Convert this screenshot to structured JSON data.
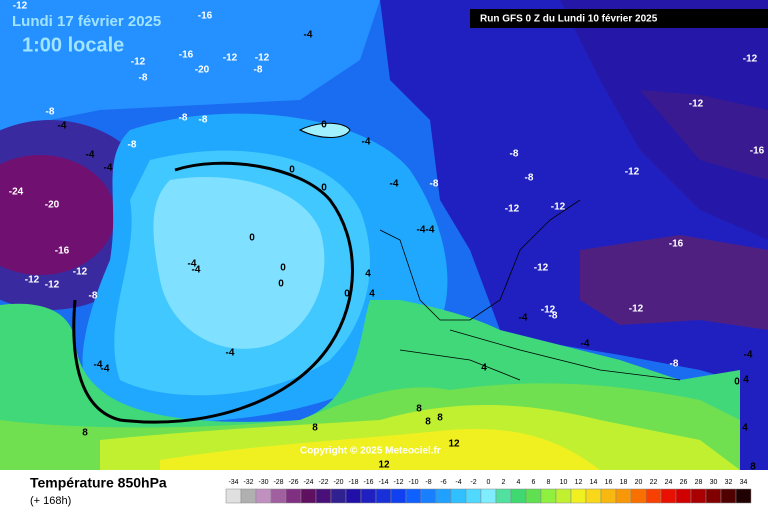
{
  "header": {
    "date": "Lundi 17 février 2025",
    "time": "1:00 locale",
    "run": "Run GFS 0 Z du Lundi 10 février 2025"
  },
  "copyright": "Copyright © 2025 Meteociel.fr",
  "footer": {
    "title": "Température 850hPa",
    "lead": "(+ 168h)"
  },
  "legend": {
    "ticks": [
      -34,
      -32,
      -30,
      -28,
      -26,
      -24,
      -22,
      -20,
      -18,
      -16,
      -14,
      -12,
      -10,
      -8,
      -6,
      -4,
      -2,
      0,
      2,
      4,
      6,
      8,
      10,
      12,
      14,
      16,
      18,
      20,
      22,
      24,
      26,
      28,
      30,
      32,
      34
    ],
    "colors": [
      "#e0e0e0",
      "#b0b0b0",
      "#c090c0",
      "#a060a0",
      "#803080",
      "#601060",
      "#481078",
      "#302090",
      "#2010a8",
      "#2020c0",
      "#1830d8",
      "#1040f0",
      "#1060ff",
      "#1880ff",
      "#20a0ff",
      "#30c0ff",
      "#50d8ff",
      "#80ecff",
      "#50e0a0",
      "#40d870",
      "#60e050",
      "#90f040",
      "#c0f030",
      "#f0f020",
      "#f8d818",
      "#f8b810",
      "#f89808",
      "#f87000",
      "#f84000",
      "#e81000",
      "#d00000",
      "#a80000",
      "#800000",
      "#500000",
      "#200000"
    ]
  },
  "map_labels": [
    -12,
    -16,
    -12,
    -8,
    -16,
    -20,
    -12,
    -8,
    -12,
    -4,
    -8,
    -4,
    -4,
    -4,
    -8,
    -8,
    -8,
    0,
    -4,
    0,
    0,
    -4,
    -8,
    -4,
    -4,
    -8,
    -8,
    -12,
    -12,
    -12,
    -12,
    -16,
    -12,
    -16,
    -12,
    -12,
    -8,
    -4,
    -12,
    -4,
    -8,
    -4,
    0,
    4,
    4,
    8,
    0,
    0,
    0,
    -4,
    -4,
    4,
    4,
    0,
    -24,
    -20,
    -16,
    -12,
    -12,
    -12,
    -8,
    -4,
    -4,
    -4,
    4,
    8,
    8,
    8,
    8,
    8,
    12,
    12
  ]
}
